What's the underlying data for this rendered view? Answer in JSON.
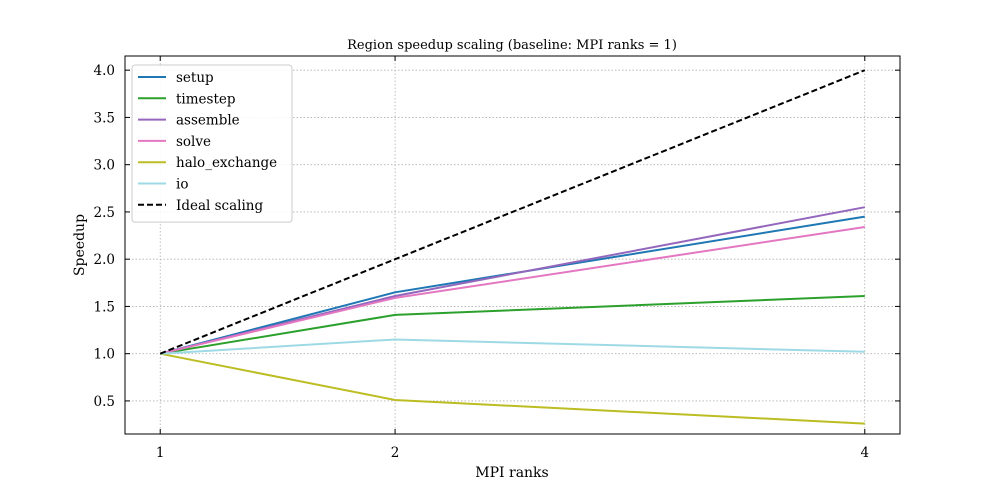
{
  "chart_data": {
    "type": "line",
    "title": "Region speedup scaling (baseline: MPI ranks = 1)",
    "xlabel": "MPI ranks",
    "ylabel": "Speedup",
    "x": [
      1,
      2,
      4
    ],
    "xticks": [
      1,
      2,
      4
    ],
    "yticks": [
      0.5,
      1.0,
      1.5,
      2.0,
      2.5,
      3.0,
      3.5,
      4.0
    ],
    "ytick_labels": [
      "0.5",
      "1.0",
      "1.5",
      "2.0",
      "2.5",
      "3.0",
      "3.5",
      "4.0"
    ],
    "xlim": [
      0.85,
      4.15
    ],
    "ylim": [
      0.15,
      4.15
    ],
    "grid": true,
    "legend_position": "top-left",
    "series": [
      {
        "name": "setup",
        "values": [
          1.0,
          1.65,
          2.45
        ],
        "color": "#1f77b4",
        "dash": "solid"
      },
      {
        "name": "timestep",
        "values": [
          1.0,
          1.41,
          1.61
        ],
        "color": "#2ca02c",
        "dash": "solid"
      },
      {
        "name": "assemble",
        "values": [
          1.0,
          1.61,
          2.55
        ],
        "color": "#9467bd",
        "dash": "solid"
      },
      {
        "name": "solve",
        "values": [
          1.0,
          1.59,
          2.34
        ],
        "color": "#e377c2",
        "dash": "solid"
      },
      {
        "name": "halo_exchange",
        "values": [
          1.0,
          0.51,
          0.26
        ],
        "color": "#bcbd22",
        "dash": "solid"
      },
      {
        "name": "io",
        "values": [
          1.0,
          1.15,
          1.02
        ],
        "color": "#9edae5",
        "dash": "solid"
      },
      {
        "name": "Ideal scaling",
        "values": [
          1.0,
          2.0,
          4.0
        ],
        "color": "#000000",
        "dash": "dashed"
      }
    ]
  }
}
